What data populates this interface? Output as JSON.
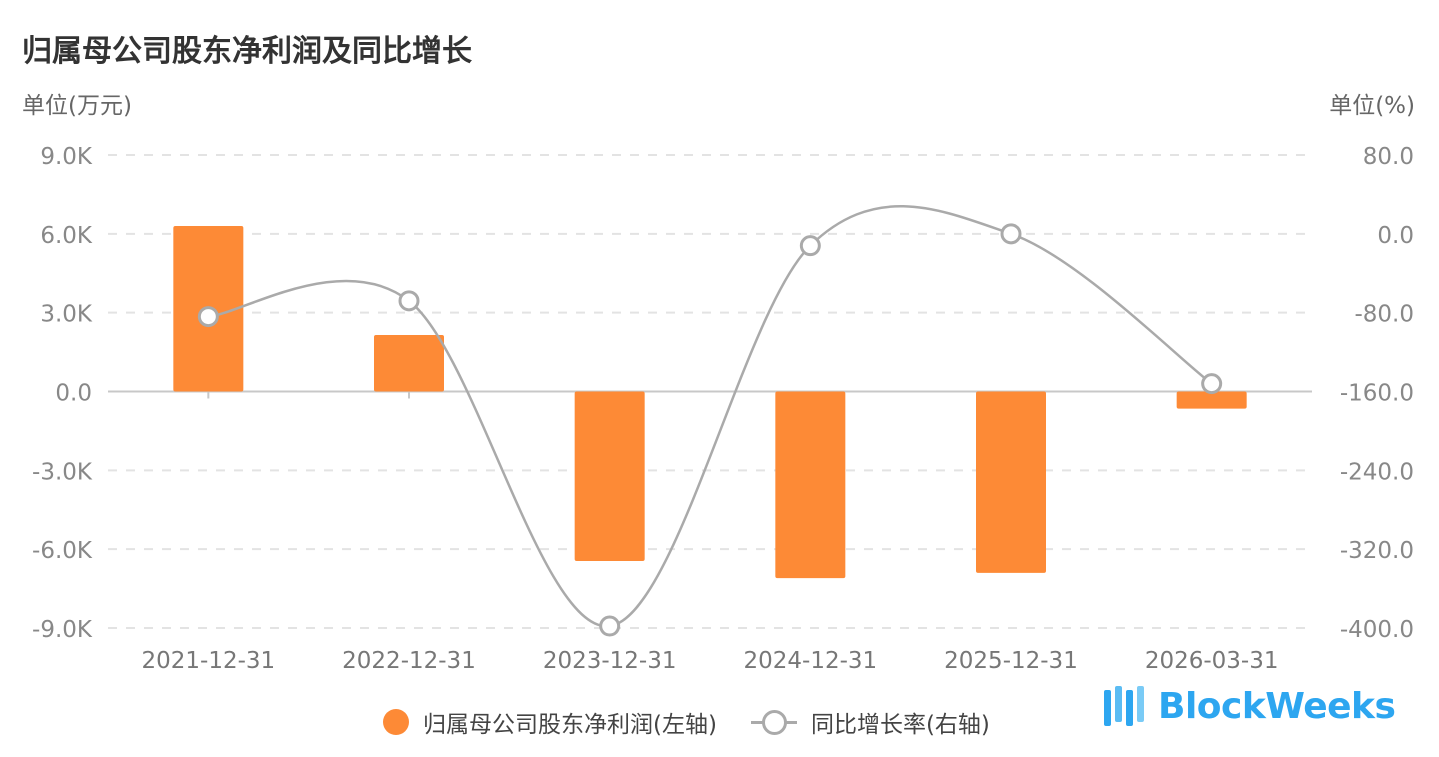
{
  "chart_data": {
    "type": "bar",
    "title": "归属母公司股东净利润及同比增长",
    "left_unit_label": "单位(万元)",
    "right_unit_label": "单位(%)",
    "categories": [
      "2021-12-31",
      "2022-12-31",
      "2023-12-31",
      "2024-12-31",
      "2025-12-31",
      "2026-03-31"
    ],
    "left_axis": {
      "min": -9000,
      "max": 9000,
      "ticks": [
        "9.0K",
        "6.0K",
        "3.0K",
        "0.0",
        "-3.0K",
        "-6.0K",
        "-9.0K"
      ]
    },
    "right_axis": {
      "min": -400,
      "max": 80,
      "ticks": [
        "80.0",
        "0.0",
        "-80.0",
        "-160.0",
        "-240.0",
        "-320.0",
        "-400.0"
      ]
    },
    "grid": true,
    "series": [
      {
        "name": "归属母公司股东净利润(左轴)",
        "type": "bar",
        "axis": "left",
        "color": "#fd8a36",
        "values": [
          6300,
          2150,
          -6450,
          -7100,
          -6900,
          -650
        ]
      },
      {
        "name": "同比增长率(右轴)",
        "type": "line",
        "axis": "right",
        "color": "#aaaaaa",
        "values": [
          -84,
          -68,
          -398,
          -12,
          0,
          -152
        ]
      }
    ],
    "legend_position": "bottom"
  },
  "watermark": {
    "text": "BlockWeeks",
    "text_color": "#2da6f0",
    "logo_color": "#2da6f0"
  }
}
